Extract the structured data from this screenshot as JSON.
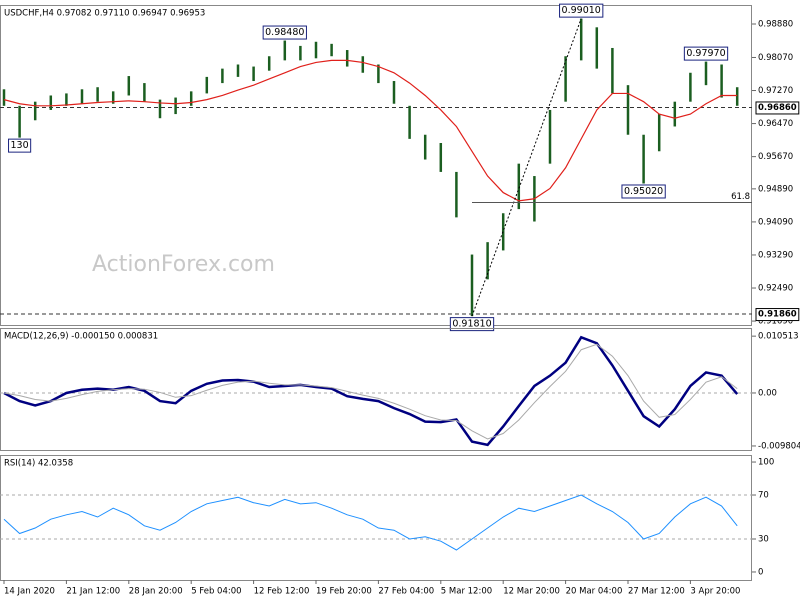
{
  "chart_data": [
    {
      "type": "hl-bar",
      "title": "USDCHF,H4  0.97082 0.97110 0.96947 0.96953",
      "color": "#1b5e20",
      "high": [
        0.973,
        0.969,
        0.97,
        0.9715,
        0.972,
        0.973,
        0.9735,
        0.9725,
        0.9762,
        0.9745,
        0.9705,
        0.971,
        0.9725,
        0.976,
        0.978,
        0.979,
        0.9785,
        0.981,
        0.9848,
        0.9835,
        0.9845,
        0.984,
        0.9825,
        0.981,
        0.979,
        0.975,
        0.969,
        0.962,
        0.96,
        0.953,
        0.933,
        0.936,
        0.943,
        0.955,
        0.952,
        0.968,
        0.981,
        0.9901,
        0.988,
        0.983,
        0.974,
        0.962,
        0.967,
        0.97,
        0.977,
        0.9797,
        0.979,
        0.9735
      ],
      "low": [
        0.969,
        0.9613,
        0.9655,
        0.968,
        0.969,
        0.9695,
        0.97,
        0.9695,
        0.9715,
        0.97,
        0.966,
        0.967,
        0.969,
        0.972,
        0.9745,
        0.976,
        0.975,
        0.9775,
        0.98,
        0.98,
        0.9805,
        0.981,
        0.9785,
        0.977,
        0.9745,
        0.9695,
        0.961,
        0.956,
        0.953,
        0.942,
        0.9181,
        0.927,
        0.934,
        0.944,
        0.941,
        0.955,
        0.97,
        0.98,
        0.978,
        0.972,
        0.962,
        0.9502,
        0.958,
        0.964,
        0.97,
        0.974,
        0.971,
        0.969
      ],
      "ma": {
        "color": "#e0201b",
        "values": [
          0.9705,
          0.9695,
          0.969,
          0.969,
          0.9692,
          0.9695,
          0.9698,
          0.97,
          0.9702,
          0.97,
          0.9697,
          0.9695,
          0.9698,
          0.9705,
          0.9715,
          0.9728,
          0.974,
          0.9755,
          0.977,
          0.9785,
          0.9795,
          0.98,
          0.98,
          0.9795,
          0.9785,
          0.977,
          0.9745,
          0.9715,
          0.968,
          0.964,
          0.958,
          0.952,
          0.948,
          0.946,
          0.9465,
          0.949,
          0.954,
          0.961,
          0.968,
          0.972,
          0.972,
          0.97,
          0.967,
          0.966,
          0.967,
          0.9695,
          0.9715,
          0.9715
        ]
      },
      "ylim": [
        0.91595,
        0.9934
      ],
      "yticks": [
        {
          "value": 0.9888,
          "label": "0.98880"
        },
        {
          "value": 0.9807,
          "label": "0.98070"
        },
        {
          "value": 0.9727,
          "label": "0.97270"
        },
        {
          "value": 0.9647,
          "label": "0.96470"
        },
        {
          "value": 0.9567,
          "label": "0.95670"
        },
        {
          "value": 0.9489,
          "label": "0.94890"
        },
        {
          "value": 0.9409,
          "label": "0.94090"
        },
        {
          "value": 0.9329,
          "label": "0.93290"
        },
        {
          "value": 0.9249,
          "label": "0.92490"
        },
        {
          "value": 0.9169,
          "label": "0.91690"
        }
      ],
      "levels": [
        {
          "value": 0.9686,
          "label": "0.96860"
        },
        {
          "value": 0.9186,
          "label": "0.91860"
        }
      ],
      "annotations": [
        {
          "value": 0.9613,
          "label": "130"
        },
        {
          "value": 0.9848,
          "label": "0.98480"
        },
        {
          "value": 0.9181,
          "label": "0.91810"
        },
        {
          "value": 0.9901,
          "label": "0.99010"
        },
        {
          "value": 0.9502,
          "label": "0.95020"
        },
        {
          "value": 0.9797,
          "label": "0.97970"
        }
      ],
      "retracement": {
        "value": 0.9456,
        "label": "61.8"
      },
      "watermark": "ActionForex.com"
    },
    {
      "type": "line",
      "title": "MACD(12,26,9) -0.000150 0.000831",
      "series": [
        {
          "color": "#000080",
          "values": [
            0,
            -0.0015,
            -0.0023,
            -0.0015,
            0,
            0.0006,
            0.0008,
            0.0006,
            0.0011,
            0.0004,
            -0.0015,
            -0.0019,
            0.0004,
            0.0017,
            0.0023,
            0.0024,
            0.0021,
            0.0011,
            0.0013,
            0.0015,
            0.0011,
            0.0008,
            -0.0006,
            -0.0011,
            -0.0015,
            -0.0028,
            -0.0039,
            -0.0053,
            -0.0054,
            -0.0049,
            -0.009,
            -0.0096,
            -0.0062,
            -0.0024,
            0.0013,
            0.0032,
            0.0056,
            0.0103,
            0.0092,
            0.0051,
            0.0004,
            -0.0043,
            -0.0062,
            -0.003,
            0.0013,
            0.0038,
            0.0032,
            -0.0002
          ]
        },
        {
          "color": "#a9a9a9",
          "values": [
            0,
            -0.0005,
            -0.0012,
            -0.0015,
            -0.001,
            -0.0003,
            0.0003,
            0.0006,
            0.0008,
            0.0007,
            0.0001,
            -0.0008,
            -0.0005,
            0.0005,
            0.0014,
            0.002,
            0.0022,
            0.0018,
            0.0015,
            0.0015,
            0.0013,
            0.001,
            0.0003,
            -0.0004,
            -0.001,
            -0.0019,
            -0.003,
            -0.0042,
            -0.005,
            -0.0051,
            -0.007,
            -0.0085,
            -0.0075,
            -0.005,
            -0.0018,
            0.0012,
            0.004,
            0.008,
            0.009,
            0.0068,
            0.0032,
            -0.0015,
            -0.0045,
            -0.004,
            -0.0012,
            0.002,
            0.003,
            0.0008
          ]
        }
      ],
      "ylim": [
        -0.01055,
        0.01202
      ],
      "yticks": [
        0.010513,
        {
          "value": 0,
          "label": "0.00"
        },
        -0.009804
      ],
      "levels": [
        0
      ]
    },
    {
      "type": "line",
      "title": "RSI(14) 42.0358",
      "series": [
        {
          "color": "#1e90ff",
          "values": [
            48,
            35,
            40,
            48,
            52,
            55,
            50,
            58,
            52,
            42,
            38,
            45,
            55,
            62,
            65,
            68,
            63,
            60,
            66,
            62,
            63,
            58,
            52,
            48,
            40,
            38,
            30,
            32,
            28,
            20,
            30,
            40,
            50,
            58,
            55,
            60,
            65,
            70,
            62,
            55,
            45,
            30,
            35,
            50,
            62,
            68,
            60,
            42
          ]
        }
      ],
      "ylim": [
        -7.3,
        106.4
      ],
      "yticks": [
        100,
        70,
        30,
        0
      ],
      "levels": [
        70,
        30
      ],
      "categories": [
        "14 Jan 2020",
        null,
        null,
        null,
        "21 Jan 12:00",
        null,
        null,
        null,
        "28 Jan 20:00",
        null,
        null,
        null,
        "5 Feb 04:00",
        null,
        null,
        null,
        "12 Feb 12:00",
        null,
        null,
        null,
        "19 Feb 20:00",
        null,
        null,
        null,
        "27 Feb 04:00",
        null,
        null,
        null,
        "5 Mar 12:00",
        null,
        null,
        null,
        "12 Mar 20:00",
        null,
        null,
        null,
        "20 Mar 04:00",
        null,
        null,
        null,
        "27 Mar 12:00",
        null,
        null,
        null,
        "3 Apr 20:00",
        null,
        null,
        null
      ]
    }
  ]
}
